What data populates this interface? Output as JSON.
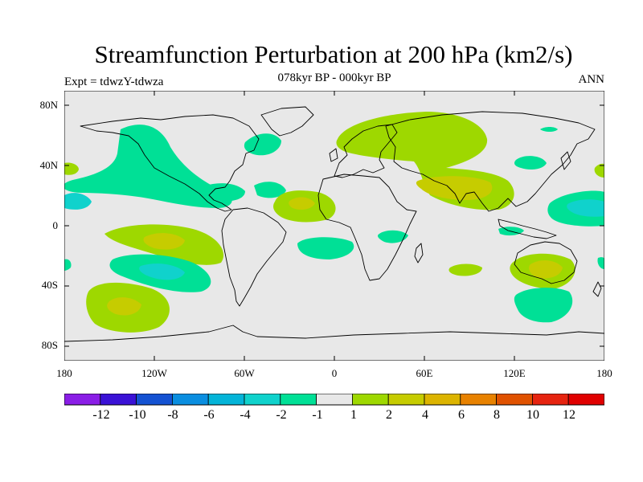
{
  "figure": {
    "title": "Streamfunction Perturbation at 200 hPa (km2/s)",
    "subtitle": "078kyr BP - 000kyr BP",
    "expt_label": "Expt = tdwzY-tdwza",
    "season": "ANN"
  },
  "axes": {
    "lat_labels": [
      "80N",
      "40N",
      "0",
      "40S",
      "80S"
    ],
    "lon_labels": [
      "180",
      "120W",
      "60W",
      "0",
      "60E",
      "120E",
      "180"
    ]
  },
  "colorbar": {
    "labels": [
      "-12",
      "-10",
      "-8",
      "-6",
      "-4",
      "-2",
      "-1",
      "1",
      "2",
      "4",
      "6",
      "8",
      "10",
      "12"
    ],
    "colors": [
      "#8a1ee6",
      "#3a12d6",
      "#1452d2",
      "#0a8ee0",
      "#04b4d8",
      "#10d2cc",
      "#00e096",
      "#e8e8e8",
      "#9ed800",
      "#c6cc00",
      "#dcb400",
      "#e88200",
      "#e05200",
      "#e62410",
      "#e00000"
    ]
  },
  "map": {
    "background_color": "#e8e8e8",
    "anomaly_fields": [
      {
        "name": "nw-pacific-negative",
        "lon": -150,
        "lat": 25,
        "level": "-1"
      },
      {
        "name": "tropical-e-pacific-positive",
        "lon": -110,
        "lat": -10,
        "level": "4"
      },
      {
        "name": "se-pacific-negative",
        "lon": -115,
        "lat": -35,
        "level": "-4"
      },
      {
        "name": "s-pacific-positive",
        "lon": -150,
        "lat": -55,
        "level": "4"
      },
      {
        "name": "w-africa-positive",
        "lon": -20,
        "lat": 15,
        "level": "4"
      },
      {
        "name": "s-atlantic-negative",
        "lon": 0,
        "lat": -15,
        "level": "-1"
      },
      {
        "name": "eurasia-positive",
        "lon": 60,
        "lat": 55,
        "level": "2"
      },
      {
        "name": "tibet-positive",
        "lon": 80,
        "lat": 25,
        "level": "4"
      },
      {
        "name": "australia-positive",
        "lon": 140,
        "lat": -25,
        "level": "4"
      },
      {
        "name": "s-indian-positive",
        "lon": 90,
        "lat": -30,
        "level": "2"
      },
      {
        "name": "w-pacific-negative",
        "lon": 160,
        "lat": 10,
        "level": "-4"
      },
      {
        "name": "southern-ocean-negative",
        "lon": 140,
        "lat": -50,
        "level": "-1"
      }
    ]
  }
}
